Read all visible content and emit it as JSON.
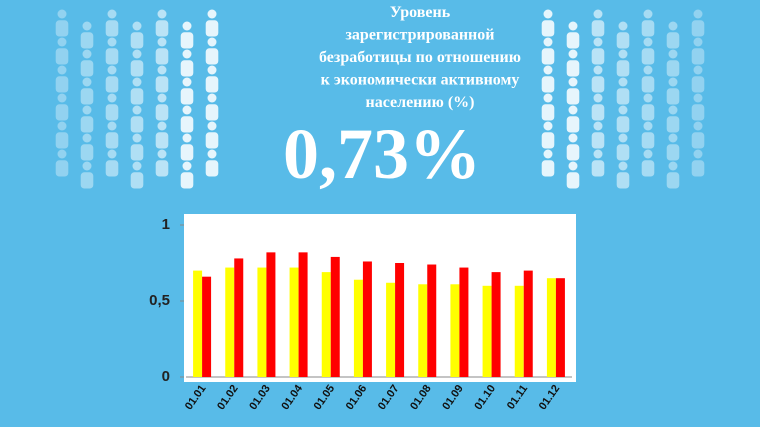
{
  "chart_data": {
    "type": "bar",
    "title": [
      "Уровень",
      "зарегистрированной",
      "безработицы по отношению",
      "к экономически активному",
      "населению (%)"
    ],
    "headline": "0,73%",
    "categories": [
      "01.01",
      "01.02",
      "01.03",
      "01.04",
      "01.05",
      "01.06",
      "01.07",
      "01.08",
      "01.09",
      "01.10",
      "01.11",
      "01.12"
    ],
    "series": [
      {
        "color": "#ffff00",
        "values": [
          0.7,
          0.72,
          0.72,
          0.72,
          0.69,
          0.64,
          0.62,
          0.61,
          0.61,
          0.6,
          0.6,
          0.65
        ]
      },
      {
        "color": "#ff0000",
        "values": [
          0.66,
          0.78,
          0.82,
          0.82,
          0.79,
          0.76,
          0.75,
          0.74,
          0.72,
          0.69,
          0.7,
          0.65
        ]
      }
    ],
    "ylim": [
      0,
      1
    ],
    "yticks": [
      0,
      {
        "value": 0.5,
        "label": "0,5"
      },
      1
    ],
    "grid": false
  }
}
